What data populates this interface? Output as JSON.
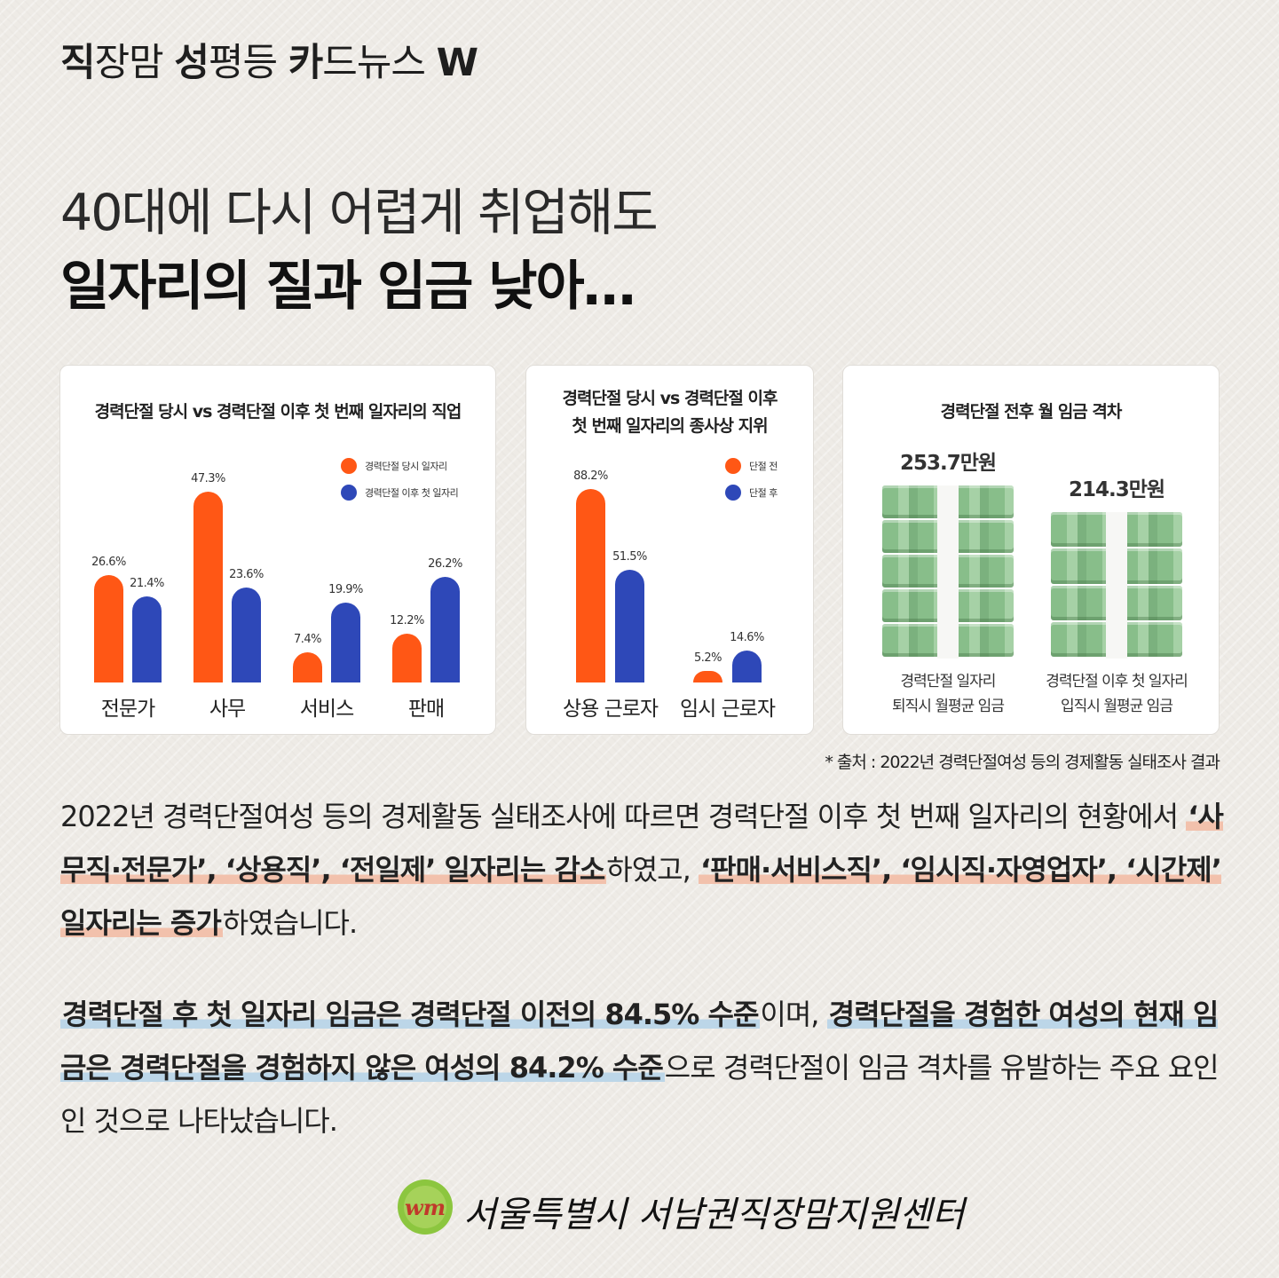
{
  "header": {
    "series_title_parts": [
      {
        "text": "직",
        "bold": true
      },
      {
        "text": "장맘 ",
        "bold": false
      },
      {
        "text": "성",
        "bold": true
      },
      {
        "text": "평등 ",
        "bold": false
      },
      {
        "text": "카",
        "bold": true
      },
      {
        "text": "드뉴스 ",
        "bold": false
      },
      {
        "text": "W",
        "bold": true
      }
    ],
    "headline_line1": "40대에 다시 어렵게 취업해도",
    "headline_line2": "일자리의 질과 임금 낮아…"
  },
  "colors": {
    "before": "#ff5715",
    "after": "#2e48b8",
    "money": "#88be8a",
    "highlight_red": "#f2c1ac",
    "highlight_blue": "#bcd6e8"
  },
  "chart_data": [
    {
      "type": "bar",
      "title_lines": [
        "경력단절 당시 vs 경력단절 이후 첫 번째 일자리의 직업"
      ],
      "categories": [
        "전문가",
        "사무",
        "서비스",
        "판매"
      ],
      "series": [
        {
          "name": "경력단절 당시 일자리",
          "values": [
            26.6,
            47.3,
            7.4,
            12.2
          ],
          "labels": [
            "26.6%",
            "47.3%",
            "7.4%",
            "12.2%"
          ]
        },
        {
          "name": "경력단절 이후 첫 일자리",
          "values": [
            21.4,
            23.6,
            19.9,
            26.2
          ],
          "labels": [
            "21.4%",
            "23.6%",
            "19.9%",
            "26.2%"
          ]
        }
      ],
      "ylim": [
        0,
        50
      ],
      "legend": "top-right"
    },
    {
      "type": "bar",
      "title_lines": [
        "경력단절 당시 vs 경력단절 이후",
        "첫 번째 일자리의 종사상 지위"
      ],
      "categories": [
        "상용 근로자",
        "임시 근로자"
      ],
      "series": [
        {
          "name": "단절 전",
          "values": [
            88.2,
            5.2
          ],
          "labels": [
            "88.2%",
            "5.2%"
          ]
        },
        {
          "name": "단절 후",
          "values": [
            51.5,
            14.6
          ],
          "labels": [
            "51.5%",
            "14.6%"
          ]
        }
      ],
      "ylim": [
        0,
        93
      ],
      "legend": "top-right"
    },
    {
      "type": "bar",
      "title_lines": [
        "경력단절 전후 월 임금 격차"
      ],
      "categories": [
        "경력단절 일자리 퇴직시 월평균 임금",
        "경력단절 이후 첫 일자리 입직시 월평균 임금"
      ],
      "values": [
        253.7,
        214.3
      ],
      "unit": "만원",
      "labels": [
        "253.7만원",
        "214.3만원"
      ],
      "caption_lines": [
        [
          "경력단절 일자리",
          "퇴직시 월평균 임금"
        ],
        [
          "경력단절 이후 첫 일자리",
          "입직시 월평균 임금"
        ]
      ]
    }
  ],
  "source_note": "*  출처 : 2022년 경력단절여성 등의 경제활동 실태조사 결과",
  "paragraph1": [
    {
      "text": "2022년 경력단절여성 등의 경제활동 실태조사에 따르면 경력단절 이후 첫 번째 일자리의 현황에서 ",
      "hl": ""
    },
    {
      "text": "‘사무직·전문가’, ‘상용직’, ‘전일제’ 일자리는 감소",
      "hl": "red"
    },
    {
      "text": "하였고, ",
      "hl": ""
    },
    {
      "text": "‘판매·서비스직’, ‘임시직·자영업자’, ‘시간제’ 일자리는 증가",
      "hl": "red"
    },
    {
      "text": "하였습니다.",
      "hl": ""
    }
  ],
  "paragraph2": [
    {
      "text": "경력단절 후 첫 일자리 임금은 경력단절 이전의 84.5% 수준",
      "hl": "blue"
    },
    {
      "text": "이며, ",
      "hl": ""
    },
    {
      "text": "경력단절을 경험한 여성의 현재 임금은  경력단절을 경험하지 않은 여성의 84.2% 수준",
      "hl": "blue"
    },
    {
      "text": "으로 경력단절이 임금 격차를 유발하는 주요 요인인 것으로 나타났습니다.",
      "hl": ""
    }
  ],
  "footer": {
    "logo_text": "wm",
    "org_name": "서울특별시 서남권직장맘지원센터"
  }
}
